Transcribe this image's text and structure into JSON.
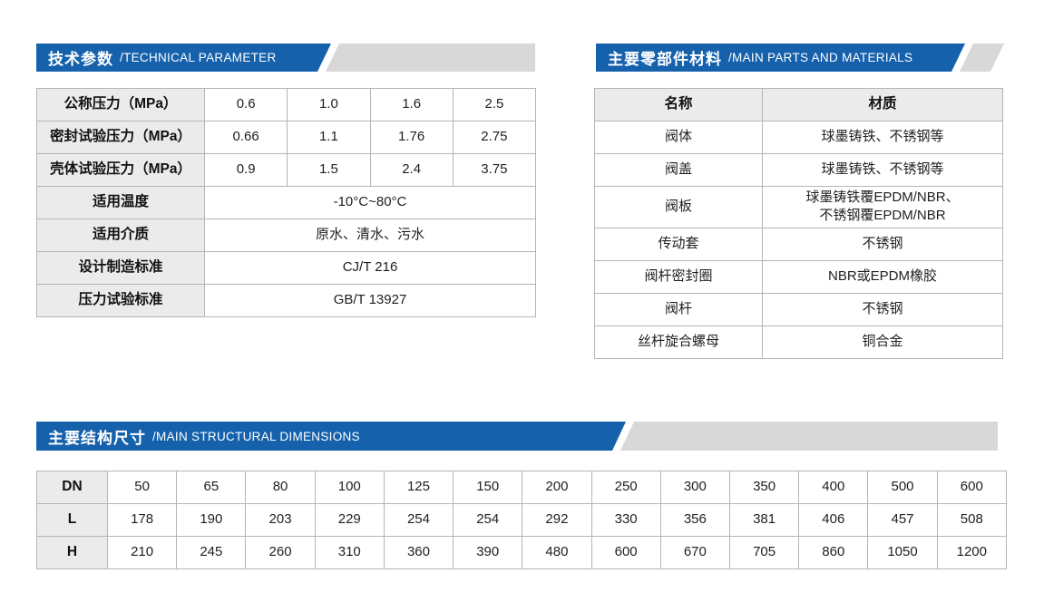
{
  "colors": {
    "banner_blue": "#1561ac",
    "banner_tail_gray": "#d8d8d8",
    "header_cell_bg": "#ebebeb",
    "table_border": "#b5b5b5"
  },
  "sections": {
    "technical": {
      "title_zh": "技术参数",
      "title_en": "/TECHNICAL PARAMETER"
    },
    "materials": {
      "title_zh": "主要零部件材料",
      "title_en": "/MAIN PARTS AND MATERIALS"
    },
    "dimensions": {
      "title_zh": "主要结构尺寸",
      "title_en": "/MAIN STRUCTURAL DIMENSIONS"
    }
  },
  "technical_table": {
    "pressure_rows": [
      {
        "label": "公称压力（MPa）",
        "values": [
          "0.6",
          "1.0",
          "1.6",
          "2.5"
        ]
      },
      {
        "label": "密封试验压力（MPa）",
        "values": [
          "0.66",
          "1.1",
          "1.76",
          "2.75"
        ]
      },
      {
        "label": "壳体试验压力（MPa）",
        "values": [
          "0.9",
          "1.5",
          "2.4",
          "3.75"
        ]
      }
    ],
    "span_rows": [
      {
        "label": "适用温度",
        "value": "-10°C~80°C"
      },
      {
        "label": "适用介质",
        "value": "原水、清水、污水"
      },
      {
        "label": "设计制造标准",
        "value": "CJ/T 216"
      },
      {
        "label": "压力试验标准",
        "value": "GB/T 13927"
      }
    ]
  },
  "materials_table": {
    "headers": [
      "名称",
      "材质"
    ],
    "rows": [
      {
        "name": "阀体",
        "material_lines": [
          "球墨铸铁、不锈钢等"
        ]
      },
      {
        "name": "阀盖",
        "material_lines": [
          "球墨铸铁、不锈钢等"
        ]
      },
      {
        "name": "阀板",
        "material_lines": [
          "球墨铸铁覆EPDM/NBR、",
          "不锈钢覆EPDM/NBR"
        ]
      },
      {
        "name": "传动套",
        "material_lines": [
          "不锈钢"
        ]
      },
      {
        "name": "阀杆密封圈",
        "material_lines": [
          "NBR或EPDM橡胶"
        ]
      },
      {
        "name": "阀杆",
        "material_lines": [
          "不锈钢"
        ]
      },
      {
        "name": "丝杆旋合螺母",
        "material_lines": [
          "铜合金"
        ]
      }
    ]
  },
  "dimensions_table": {
    "rows": [
      {
        "label": "DN",
        "values": [
          "50",
          "65",
          "80",
          "100",
          "125",
          "150",
          "200",
          "250",
          "300",
          "350",
          "400",
          "500",
          "600"
        ]
      },
      {
        "label": "L",
        "values": [
          "178",
          "190",
          "203",
          "229",
          "254",
          "254",
          "292",
          "330",
          "356",
          "381",
          "406",
          "457",
          "508"
        ]
      },
      {
        "label": "H",
        "values": [
          "210",
          "245",
          "260",
          "310",
          "360",
          "390",
          "480",
          "600",
          "670",
          "705",
          "860",
          "1050",
          "1200"
        ]
      }
    ]
  }
}
